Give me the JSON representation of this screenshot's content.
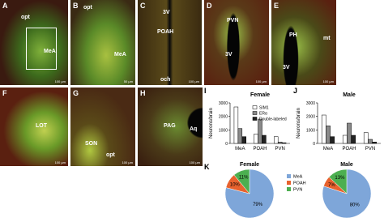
{
  "panels": [
    {
      "letter": "A",
      "labels": [
        "opt",
        "MeA"
      ],
      "scale": "100 µm"
    },
    {
      "letter": "B",
      "labels": [
        "opt",
        "MeA"
      ],
      "scale": "50 µm"
    },
    {
      "letter": "C",
      "labels": [
        "3V",
        "POAH",
        "och"
      ],
      "scale": "100 µm"
    },
    {
      "letter": "D",
      "labels": [
        "PVN",
        "3V"
      ],
      "scale": "100 µm"
    },
    {
      "letter": "E",
      "labels": [
        "PH",
        "mt",
        "3V"
      ],
      "scale": "100 µm"
    },
    {
      "letter": "F",
      "labels": [
        "LOT"
      ],
      "scale": "100 µm"
    },
    {
      "letter": "G",
      "labels": [
        "SON",
        "opt"
      ],
      "scale": "100 µm"
    },
    {
      "letter": "H",
      "labels": [
        "PAG",
        "Aq"
      ],
      "scale": "100 µm"
    }
  ],
  "chart_data": [
    {
      "type": "bar",
      "panel": "I",
      "title": "Female",
      "y_label": "Neurons/brain",
      "categories": [
        "MeA",
        "POAH",
        "PVN"
      ],
      "series": [
        {
          "name": "SIM1",
          "color": "#ffffff",
          "values": [
            2700,
            700,
            500
          ]
        },
        {
          "name": "ERα",
          "color": "#8a8a8a",
          "values": [
            1100,
            1800,
            100
          ]
        },
        {
          "name": "Double-labeled",
          "color": "#222222",
          "values": [
            500,
            600,
            50
          ]
        }
      ],
      "ylim": [
        0,
        3000
      ],
      "yticks": [
        0,
        1000,
        2000,
        3000
      ]
    },
    {
      "type": "bar",
      "panel": "J",
      "title": "Male",
      "y_label": "Neurons/brain",
      "categories": [
        "MeA",
        "POAH",
        "PVN"
      ],
      "series": [
        {
          "name": "SIM1",
          "color": "#ffffff",
          "values": [
            2100,
            600,
            800
          ]
        },
        {
          "name": "ERα",
          "color": "#8a8a8a",
          "values": [
            1300,
            1500,
            300
          ]
        },
        {
          "name": "Double-labeled",
          "color": "#222222",
          "values": [
            500,
            600,
            100
          ]
        }
      ],
      "ylim": [
        0,
        3000
      ],
      "yticks": [
        0,
        1000,
        2000,
        3000
      ]
    },
    {
      "type": "pie",
      "panel": "K",
      "categories": [
        "MeA",
        "POAH",
        "PVN"
      ],
      "colors": [
        "#7ea6d9",
        "#e8622e",
        "#4caf50"
      ],
      "pies": [
        {
          "title": "Female",
          "values": [
            79,
            10,
            11
          ],
          "value_labels": [
            "79%",
            "10%",
            "11%"
          ]
        },
        {
          "title": "Male",
          "values": [
            80,
            7,
            13
          ],
          "value_labels": [
            "80%",
            "7%",
            "13%"
          ]
        }
      ]
    }
  ]
}
